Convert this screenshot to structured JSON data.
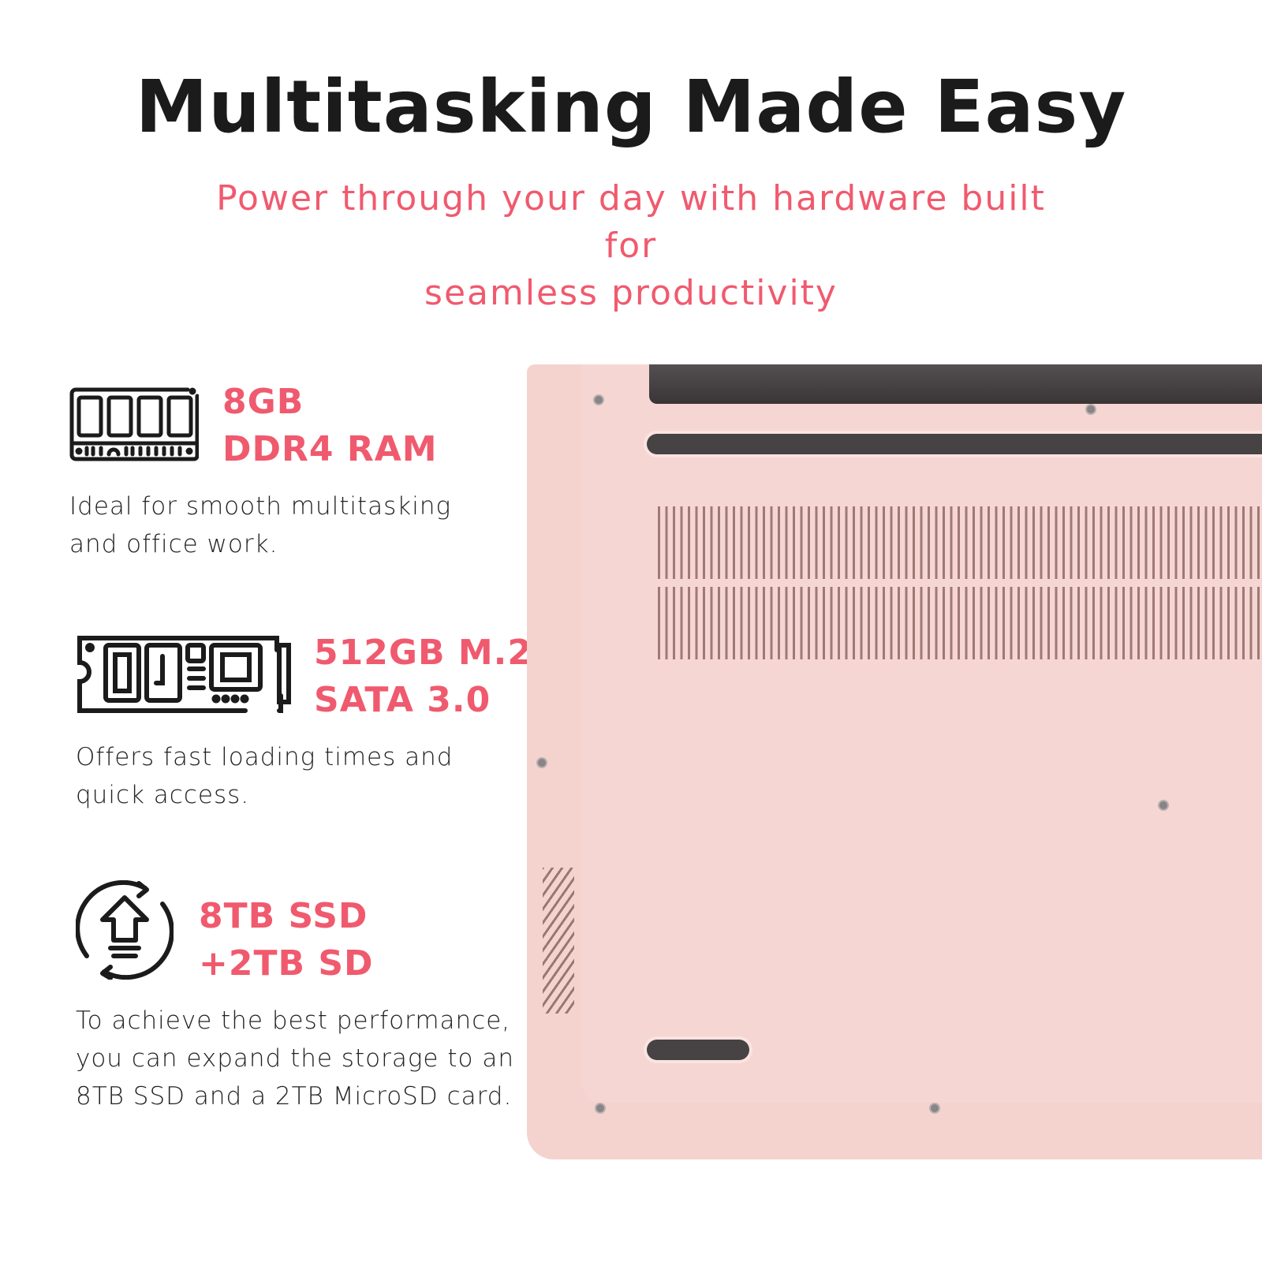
{
  "header": {
    "title": "Multitasking Made Easy",
    "subtitle_line1": "Power through your day with hardware built for",
    "subtitle_line2": "seamless productivity"
  },
  "colors": {
    "accent": "#f05a6e",
    "text": "#1b1b1b",
    "laptop_body": "#f4d3cf"
  },
  "features": [
    {
      "icon": "ram-module-icon",
      "title_line1": "8GB",
      "title_line2": "DDR4 RAM",
      "desc_line1": "Ideal for smooth multitasking",
      "desc_line2": "and office work."
    },
    {
      "icon": "m2-ssd-icon",
      "title_line1": "512GB M.2",
      "title_line2": "SATA 3.0",
      "desc_line1": "Offers fast loading times and",
      "desc_line2": "quick access."
    },
    {
      "icon": "storage-upgrade-icon",
      "title_line1": "8TB SSD",
      "title_line2": "+2TB SD",
      "desc_line1": "To achieve the best performance,",
      "desc_line2": "you can expand the storage to an",
      "desc_line3": "8TB SSD and a 2TB MicroSD card."
    }
  ]
}
